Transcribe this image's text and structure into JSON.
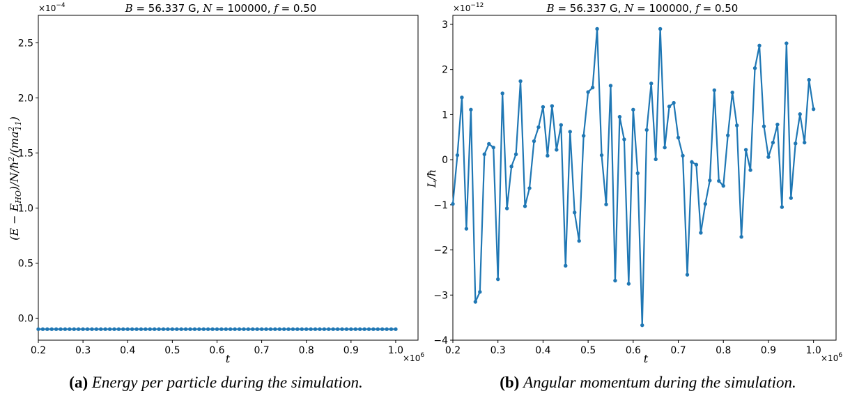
{
  "chart_data": [
    {
      "type": "scatter",
      "title": "B = 56.337 G, N = 100000, f = 0.50",
      "xlabel": "t",
      "ylabel": "(E − E_HO)/N/ħ²/(ma²₁₁)",
      "x_multiplier": "×10^6",
      "y_multiplier": "×10^−4",
      "xlim": [
        0.2,
        1.05
      ],
      "ylim": [
        -0.2,
        2.75
      ],
      "xticks": [
        "0.2",
        "0.3",
        "0.4",
        "0.5",
        "0.6",
        "0.7",
        "0.8",
        "0.9",
        "1.0"
      ],
      "yticks": [
        "0.0",
        "0.5",
        "1.0",
        "1.5",
        "2.0",
        "2.5"
      ],
      "x_start": 0.2,
      "x_step": 0.01,
      "x_count": 81,
      "constant_y": -0.1,
      "color": "#1f77b4",
      "caption_label": "(a)",
      "caption_text": "Energy per particle during the simulation."
    },
    {
      "type": "line",
      "title": "B = 56.337 G, N = 100000, f = 0.50",
      "xlabel": "t",
      "ylabel": "L/ħ",
      "x_multiplier": "×10^6",
      "y_multiplier": "×10^−12",
      "xlim": [
        0.2,
        1.05
      ],
      "ylim": [
        -4,
        3.2
      ],
      "xticks": [
        "0.2",
        "0.3",
        "0.4",
        "0.5",
        "0.6",
        "0.7",
        "0.8",
        "0.9",
        "1.0"
      ],
      "yticks": [
        "−4",
        "−3",
        "−2",
        "−1",
        "0",
        "1",
        "2",
        "3"
      ],
      "x_start": 0.2,
      "x_step": 0.01,
      "y": [
        -0.98,
        0.1,
        1.38,
        -1.53,
        1.11,
        -3.15,
        -2.93,
        0.12,
        0.35,
        0.27,
        -2.65,
        1.47,
        -1.08,
        -0.15,
        0.12,
        1.74,
        -1.03,
        -0.63,
        0.41,
        0.72,
        1.17,
        0.09,
        1.19,
        0.22,
        0.77,
        -2.35,
        0.62,
        -1.17,
        -1.8,
        0.53,
        1.5,
        1.6,
        2.9,
        0.1,
        -0.99,
        1.64,
        -2.68,
        0.95,
        0.45,
        -2.75,
        1.11,
        -0.3,
        -3.67,
        0.66,
        1.69,
        0.01,
        2.9,
        0.27,
        1.18,
        1.26,
        0.49,
        0.09,
        -2.55,
        -0.05,
        -0.11,
        -1.62,
        -0.98,
        -0.46,
        1.54,
        -0.47,
        -0.58,
        0.54,
        1.49,
        0.76,
        -1.71,
        0.22,
        -0.23,
        2.03,
        2.53,
        0.74,
        0.06,
        0.38,
        0.78,
        -1.05,
        2.58,
        -0.85,
        0.36,
        1.01,
        0.38,
        1.77,
        1.12
      ],
      "color": "#1f77b4",
      "caption_label": "(b)",
      "caption_text": "Angular momentum during the simulation."
    }
  ]
}
